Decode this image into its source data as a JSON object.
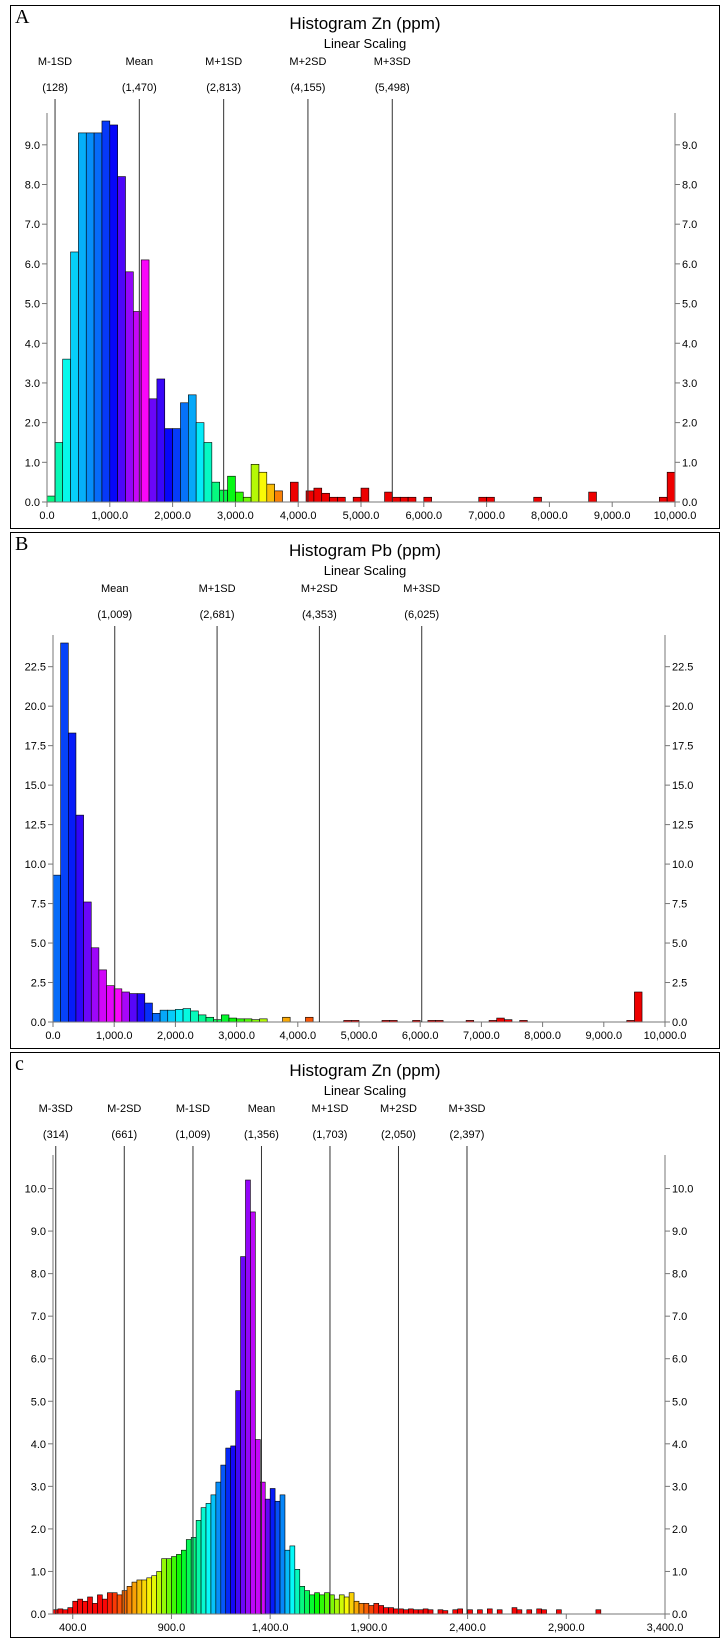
{
  "chart_data": [
    {
      "panel": "A",
      "type": "bar",
      "title": "Histogram Zn (ppm)",
      "subtitle": "Linear Scaling",
      "xlim": [
        0,
        10000
      ],
      "ylim": [
        0,
        9.6
      ],
      "x_ticks": [
        0,
        1000,
        2000,
        3000,
        4000,
        5000,
        6000,
        7000,
        8000,
        9000,
        10000
      ],
      "x_tick_labels": [
        "0.0",
        "1,000.0",
        "2,000.0",
        "3,000.0",
        "4,000.0",
        "5,000.0",
        "6,000.0",
        "7,000.0",
        "8,000.0",
        "9,000.0",
        "10,000.0"
      ],
      "y_ticks": [
        0,
        1,
        2,
        3,
        4,
        5,
        6,
        7,
        8,
        9
      ],
      "y_tick_labels": [
        "0.0",
        "1.0",
        "2.0",
        "3.0",
        "4.0",
        "5.0",
        "6.0",
        "7.0",
        "8.0",
        "9.0"
      ],
      "grid": false,
      "markers": [
        {
          "label": "M-1SD",
          "value_label": "(128)",
          "x": 128
        },
        {
          "label": "Mean",
          "value_label": "(1,470)",
          "x": 1470
        },
        {
          "label": "M+1SD",
          "value_label": "(2,813)",
          "x": 2813
        },
        {
          "label": "M+2SD",
          "value_label": "(4,155)",
          "x": 4155
        },
        {
          "label": "M+3SD",
          "value_label": "(5,498)",
          "x": 5498
        }
      ],
      "bin_width": 125,
      "bins": [
        {
          "x": 0,
          "y": 0.15
        },
        {
          "x": 125,
          "y": 1.5
        },
        {
          "x": 250,
          "y": 3.6
        },
        {
          "x": 375,
          "y": 6.3
        },
        {
          "x": 500,
          "y": 9.3
        },
        {
          "x": 625,
          "y": 9.3
        },
        {
          "x": 750,
          "y": 9.3
        },
        {
          "x": 875,
          "y": 9.6
        },
        {
          "x": 1000,
          "y": 9.5
        },
        {
          "x": 1125,
          "y": 8.2
        },
        {
          "x": 1250,
          "y": 5.8
        },
        {
          "x": 1375,
          "y": 4.8
        },
        {
          "x": 1500,
          "y": 6.1
        },
        {
          "x": 1625,
          "y": 2.6
        },
        {
          "x": 1750,
          "y": 3.1
        },
        {
          "x": 1875,
          "y": 1.85
        },
        {
          "x": 2000,
          "y": 1.85
        },
        {
          "x": 2125,
          "y": 2.5
        },
        {
          "x": 2250,
          "y": 2.7
        },
        {
          "x": 2375,
          "y": 2.0
        },
        {
          "x": 2500,
          "y": 1.5
        },
        {
          "x": 2625,
          "y": 0.5
        },
        {
          "x": 2750,
          "y": 0.3
        },
        {
          "x": 2875,
          "y": 0.65
        },
        {
          "x": 3000,
          "y": 0.25
        },
        {
          "x": 3125,
          "y": 0.12
        },
        {
          "x": 3250,
          "y": 0.95
        },
        {
          "x": 3375,
          "y": 0.75
        },
        {
          "x": 3500,
          "y": 0.45
        },
        {
          "x": 3625,
          "y": 0.28
        },
        {
          "x": 3875,
          "y": 0.5
        },
        {
          "x": 4125,
          "y": 0.28
        },
        {
          "x": 4250,
          "y": 0.35
        },
        {
          "x": 4375,
          "y": 0.22
        },
        {
          "x": 4500,
          "y": 0.12
        },
        {
          "x": 4625,
          "y": 0.12
        },
        {
          "x": 4875,
          "y": 0.12
        },
        {
          "x": 5000,
          "y": 0.35
        },
        {
          "x": 5375,
          "y": 0.25
        },
        {
          "x": 5500,
          "y": 0.12
        },
        {
          "x": 5625,
          "y": 0.12
        },
        {
          "x": 5750,
          "y": 0.12
        },
        {
          "x": 6000,
          "y": 0.12
        },
        {
          "x": 6875,
          "y": 0.12
        },
        {
          "x": 7000,
          "y": 0.12
        },
        {
          "x": 7750,
          "y": 0.12
        },
        {
          "x": 8625,
          "y": 0.25
        },
        {
          "x": 9750,
          "y": 0.12
        },
        {
          "x": 9875,
          "y": 0.75
        }
      ]
    },
    {
      "panel": "B",
      "type": "bar",
      "title": "Histogram Pb (ppm)",
      "subtitle": "Linear Scaling",
      "xlim": [
        0,
        10000
      ],
      "ylim": [
        0,
        24
      ],
      "x_ticks": [
        0,
        1000,
        2000,
        3000,
        4000,
        5000,
        6000,
        7000,
        8000,
        9000,
        10000
      ],
      "x_tick_labels": [
        "0.0",
        "1,000.0",
        "2,000.0",
        "3,000.0",
        "4,000.0",
        "5,000.0",
        "6,000.0",
        "7,000.0",
        "8,000.0",
        "9,000.0",
        "10,000.0"
      ],
      "y_ticks": [
        0,
        2.5,
        5,
        7.5,
        10,
        12.5,
        15,
        17.5,
        20,
        22.5
      ],
      "y_tick_labels": [
        "0.0",
        "2.5",
        "5.0",
        "7.5",
        "10.0",
        "12.5",
        "15.0",
        "17.5",
        "20.0",
        "22.5"
      ],
      "grid": false,
      "markers": [
        {
          "label": "Mean",
          "value_label": "(1,009)",
          "x": 1009
        },
        {
          "label": "M+1SD",
          "value_label": "(2,681)",
          "x": 2681
        },
        {
          "label": "M+2SD",
          "value_label": "(4,353)",
          "x": 4353
        },
        {
          "label": "M+3SD",
          "value_label": "(6,025)",
          "x": 6025
        }
      ],
      "bin_width": 125,
      "bins": [
        {
          "x": 0,
          "y": 9.3
        },
        {
          "x": 125,
          "y": 24.0
        },
        {
          "x": 250,
          "y": 18.3
        },
        {
          "x": 375,
          "y": 13.1
        },
        {
          "x": 500,
          "y": 7.6
        },
        {
          "x": 625,
          "y": 4.7
        },
        {
          "x": 750,
          "y": 3.3
        },
        {
          "x": 875,
          "y": 2.3
        },
        {
          "x": 1000,
          "y": 2.1
        },
        {
          "x": 1125,
          "y": 1.9
        },
        {
          "x": 1250,
          "y": 1.8
        },
        {
          "x": 1375,
          "y": 1.8
        },
        {
          "x": 1500,
          "y": 1.2
        },
        {
          "x": 1625,
          "y": 0.55
        },
        {
          "x": 1750,
          "y": 0.75
        },
        {
          "x": 1875,
          "y": 0.75
        },
        {
          "x": 2000,
          "y": 0.8
        },
        {
          "x": 2125,
          "y": 0.85
        },
        {
          "x": 2250,
          "y": 0.7
        },
        {
          "x": 2375,
          "y": 0.45
        },
        {
          "x": 2500,
          "y": 0.3
        },
        {
          "x": 2625,
          "y": 0.15
        },
        {
          "x": 2750,
          "y": 0.45
        },
        {
          "x": 2875,
          "y": 0.25
        },
        {
          "x": 3000,
          "y": 0.2
        },
        {
          "x": 3125,
          "y": 0.2
        },
        {
          "x": 3250,
          "y": 0.15
        },
        {
          "x": 3375,
          "y": 0.2
        },
        {
          "x": 3750,
          "y": 0.3
        },
        {
          "x": 4125,
          "y": 0.3
        },
        {
          "x": 4750,
          "y": 0.1
        },
        {
          "x": 4875,
          "y": 0.1
        },
        {
          "x": 5375,
          "y": 0.1
        },
        {
          "x": 5500,
          "y": 0.1
        },
        {
          "x": 5875,
          "y": 0.1
        },
        {
          "x": 6125,
          "y": 0.1
        },
        {
          "x": 6250,
          "y": 0.1
        },
        {
          "x": 6750,
          "y": 0.1
        },
        {
          "x": 7125,
          "y": 0.1
        },
        {
          "x": 7250,
          "y": 0.25
        },
        {
          "x": 7375,
          "y": 0.15
        },
        {
          "x": 7625,
          "y": 0.1
        },
        {
          "x": 9375,
          "y": 0.1
        },
        {
          "x": 9500,
          "y": 1.9
        }
      ]
    },
    {
      "panel": "c",
      "type": "bar",
      "title": "Histogram Zn (ppm)",
      "subtitle": "Linear Scaling",
      "xlim": [
        300,
        3400
      ],
      "ylim": [
        0,
        10.6
      ],
      "x_ticks": [
        400,
        900,
        1400,
        1900,
        2400,
        2900,
        3400
      ],
      "x_tick_labels": [
        "400.0",
        "900.0",
        "1,400.0",
        "1,900.0",
        "2,400.0",
        "2,900.0",
        "3,400.0"
      ],
      "y_ticks": [
        0,
        1,
        2,
        3,
        4,
        5,
        6,
        7,
        8,
        9,
        10
      ],
      "y_tick_labels": [
        "0.0",
        "1.0",
        "2.0",
        "3.0",
        "4.0",
        "5.0",
        "6.0",
        "7.0",
        "8.0",
        "9.0",
        "10.0"
      ],
      "grid": false,
      "markers": [
        {
          "label": "M-3SD",
          "value_label": "(314)",
          "x": 314
        },
        {
          "label": "M-2SD",
          "value_label": "(661)",
          "x": 661
        },
        {
          "label": "M-1SD",
          "value_label": "(1,009)",
          "x": 1009
        },
        {
          "label": "Mean",
          "value_label": "(1,356)",
          "x": 1356
        },
        {
          "label": "M+1SD",
          "value_label": "(1,703)",
          "x": 1703
        },
        {
          "label": "M+2SD",
          "value_label": "(2,050)",
          "x": 2050
        },
        {
          "label": "M+3SD",
          "value_label": "(2,397)",
          "x": 2397
        }
      ],
      "bin_width": 25,
      "bins": [
        {
          "x": 300,
          "y": 0.1
        },
        {
          "x": 325,
          "y": 0.12
        },
        {
          "x": 350,
          "y": 0.1
        },
        {
          "x": 375,
          "y": 0.15
        },
        {
          "x": 400,
          "y": 0.3
        },
        {
          "x": 425,
          "y": 0.35
        },
        {
          "x": 450,
          "y": 0.3
        },
        {
          "x": 475,
          "y": 0.4
        },
        {
          "x": 500,
          "y": 0.25
        },
        {
          "x": 525,
          "y": 0.45
        },
        {
          "x": 550,
          "y": 0.35
        },
        {
          "x": 575,
          "y": 0.5
        },
        {
          "x": 600,
          "y": 0.5
        },
        {
          "x": 625,
          "y": 0.45
        },
        {
          "x": 650,
          "y": 0.55
        },
        {
          "x": 675,
          "y": 0.65
        },
        {
          "x": 700,
          "y": 0.75
        },
        {
          "x": 725,
          "y": 0.8
        },
        {
          "x": 750,
          "y": 0.8
        },
        {
          "x": 775,
          "y": 0.85
        },
        {
          "x": 800,
          "y": 0.9
        },
        {
          "x": 825,
          "y": 1.0
        },
        {
          "x": 850,
          "y": 1.3
        },
        {
          "x": 875,
          "y": 1.3
        },
        {
          "x": 900,
          "y": 1.35
        },
        {
          "x": 925,
          "y": 1.4
        },
        {
          "x": 950,
          "y": 1.5
        },
        {
          "x": 975,
          "y": 1.75
        },
        {
          "x": 1000,
          "y": 1.8
        },
        {
          "x": 1025,
          "y": 2.2
        },
        {
          "x": 1050,
          "y": 2.5
        },
        {
          "x": 1075,
          "y": 2.6
        },
        {
          "x": 1100,
          "y": 2.8
        },
        {
          "x": 1125,
          "y": 3.1
        },
        {
          "x": 1150,
          "y": 3.5
        },
        {
          "x": 1175,
          "y": 3.9
        },
        {
          "x": 1200,
          "y": 3.95
        },
        {
          "x": 1225,
          "y": 5.25
        },
        {
          "x": 1250,
          "y": 8.4
        },
        {
          "x": 1275,
          "y": 10.2
        },
        {
          "x": 1300,
          "y": 9.45
        },
        {
          "x": 1325,
          "y": 4.1
        },
        {
          "x": 1350,
          "y": 3.1
        },
        {
          "x": 1375,
          "y": 2.7
        },
        {
          "x": 1400,
          "y": 2.95
        },
        {
          "x": 1425,
          "y": 2.65
        },
        {
          "x": 1450,
          "y": 2.8
        },
        {
          "x": 1475,
          "y": 1.5
        },
        {
          "x": 1500,
          "y": 1.6
        },
        {
          "x": 1525,
          "y": 1.05
        },
        {
          "x": 1550,
          "y": 0.65
        },
        {
          "x": 1575,
          "y": 0.55
        },
        {
          "x": 1600,
          "y": 0.45
        },
        {
          "x": 1625,
          "y": 0.5
        },
        {
          "x": 1650,
          "y": 0.45
        },
        {
          "x": 1675,
          "y": 0.5
        },
        {
          "x": 1700,
          "y": 0.45
        },
        {
          "x": 1725,
          "y": 0.35
        },
        {
          "x": 1750,
          "y": 0.45
        },
        {
          "x": 1775,
          "y": 0.4
        },
        {
          "x": 1800,
          "y": 0.5
        },
        {
          "x": 1825,
          "y": 0.3
        },
        {
          "x": 1850,
          "y": 0.25
        },
        {
          "x": 1875,
          "y": 0.25
        },
        {
          "x": 1900,
          "y": 0.2
        },
        {
          "x": 1925,
          "y": 0.25
        },
        {
          "x": 1950,
          "y": 0.2
        },
        {
          "x": 1975,
          "y": 0.15
        },
        {
          "x": 2000,
          "y": 0.15
        },
        {
          "x": 2025,
          "y": 0.12
        },
        {
          "x": 2050,
          "y": 0.12
        },
        {
          "x": 2075,
          "y": 0.1
        },
        {
          "x": 2100,
          "y": 0.12
        },
        {
          "x": 2125,
          "y": 0.1
        },
        {
          "x": 2150,
          "y": 0.1
        },
        {
          "x": 2175,
          "y": 0.12
        },
        {
          "x": 2200,
          "y": 0.1
        },
        {
          "x": 2250,
          "y": 0.1
        },
        {
          "x": 2275,
          "y": 0.08
        },
        {
          "x": 2325,
          "y": 0.1
        },
        {
          "x": 2350,
          "y": 0.12
        },
        {
          "x": 2400,
          "y": 0.1
        },
        {
          "x": 2450,
          "y": 0.1
        },
        {
          "x": 2500,
          "y": 0.12
        },
        {
          "x": 2550,
          "y": 0.1
        },
        {
          "x": 2625,
          "y": 0.15
        },
        {
          "x": 2650,
          "y": 0.1
        },
        {
          "x": 2700,
          "y": 0.1
        },
        {
          "x": 2750,
          "y": 0.12
        },
        {
          "x": 2775,
          "y": 0.1
        },
        {
          "x": 2850,
          "y": 0.1
        },
        {
          "x": 3050,
          "y": 0.1
        }
      ]
    }
  ]
}
